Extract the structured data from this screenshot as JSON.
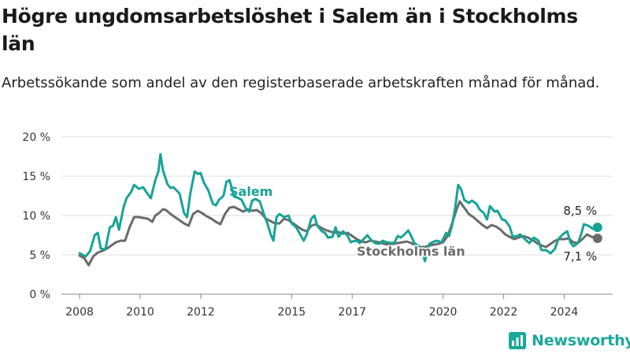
{
  "title": "Högre ungdomsarbetslöshet i Salem än i Stockholms län",
  "subtitle": "Arbetssökande som andel av den registerbaserade arbetskraften månad för månad.",
  "brand": "Newsworthy",
  "colors": {
    "salem": "#17a398",
    "stockholm": "#6b6b6b",
    "grid": "#dddddd",
    "brand": "#1aa89a"
  },
  "chart_data": {
    "type": "line",
    "ylim": [
      0,
      20
    ],
    "yticks": [
      0,
      5,
      10,
      15,
      20
    ],
    "ytick_labels": [
      "0 %",
      "5 %",
      "10 %",
      "15 %",
      "20 %"
    ],
    "xlim": [
      2007.4,
      2025.6
    ],
    "xticks": [
      2008,
      2010,
      2012,
      2015,
      2017,
      2020,
      2022,
      2024
    ],
    "xtick_labels": [
      "2008",
      "2010",
      "2012",
      "2015",
      "2017",
      "2020",
      "2022",
      "2024"
    ],
    "grid": true,
    "series": [
      {
        "name": "Salem",
        "end_label": "8,5 %",
        "points": [
          [
            2008.0,
            5.2
          ],
          [
            2008.2,
            4.8
          ],
          [
            2008.35,
            5.5
          ],
          [
            2008.5,
            7.5
          ],
          [
            2008.6,
            7.8
          ],
          [
            2008.7,
            5.8
          ],
          [
            2008.85,
            5.7
          ],
          [
            2009.0,
            8.5
          ],
          [
            2009.1,
            8.7
          ],
          [
            2009.2,
            9.8
          ],
          [
            2009.3,
            8.2
          ],
          [
            2009.45,
            11.0
          ],
          [
            2009.55,
            12.2
          ],
          [
            2009.7,
            13.0
          ],
          [
            2009.8,
            13.9
          ],
          [
            2009.95,
            13.4
          ],
          [
            2010.1,
            13.6
          ],
          [
            2010.2,
            13.0
          ],
          [
            2010.35,
            12.2
          ],
          [
            2010.5,
            14.5
          ],
          [
            2010.6,
            15.6
          ],
          [
            2010.67,
            17.8
          ],
          [
            2010.75,
            15.8
          ],
          [
            2010.9,
            14.0
          ],
          [
            2011.0,
            13.5
          ],
          [
            2011.1,
            13.6
          ],
          [
            2011.3,
            12.8
          ],
          [
            2011.45,
            10.3
          ],
          [
            2011.55,
            9.8
          ],
          [
            2011.65,
            12.7
          ],
          [
            2011.8,
            15.6
          ],
          [
            2011.9,
            15.3
          ],
          [
            2012.0,
            15.4
          ],
          [
            2012.1,
            14.2
          ],
          [
            2012.25,
            13.2
          ],
          [
            2012.4,
            11.5
          ],
          [
            2012.5,
            11.3
          ],
          [
            2012.6,
            12.0
          ],
          [
            2012.75,
            12.5
          ],
          [
            2012.85,
            14.3
          ],
          [
            2012.95,
            14.5
          ],
          [
            2013.1,
            12.4
          ],
          [
            2013.2,
            12.3
          ],
          [
            2013.35,
            12.0
          ],
          [
            2013.5,
            10.8
          ],
          [
            2013.6,
            10.5
          ],
          [
            2013.7,
            11.9
          ],
          [
            2013.8,
            12.1
          ],
          [
            2013.95,
            11.8
          ],
          [
            2014.1,
            10.0
          ],
          [
            2014.2,
            9.0
          ],
          [
            2014.3,
            7.7
          ],
          [
            2014.4,
            6.8
          ],
          [
            2014.5,
            9.8
          ],
          [
            2014.6,
            10.2
          ],
          [
            2014.75,
            9.8
          ],
          [
            2014.9,
            10.0
          ],
          [
            2015.0,
            9.0
          ],
          [
            2015.15,
            8.5
          ],
          [
            2015.3,
            7.5
          ],
          [
            2015.4,
            6.8
          ],
          [
            2015.5,
            7.6
          ],
          [
            2015.65,
            9.6
          ],
          [
            2015.75,
            10.0
          ],
          [
            2015.85,
            8.7
          ],
          [
            2016.0,
            8.0
          ],
          [
            2016.1,
            7.8
          ],
          [
            2016.2,
            7.2
          ],
          [
            2016.35,
            7.3
          ],
          [
            2016.45,
            8.5
          ],
          [
            2016.55,
            7.3
          ],
          [
            2016.7,
            8.0
          ],
          [
            2016.85,
            7.4
          ],
          [
            2016.95,
            6.6
          ],
          [
            2017.0,
            6.7
          ],
          [
            2017.15,
            6.8
          ],
          [
            2017.25,
            6.5
          ],
          [
            2017.35,
            6.9
          ],
          [
            2017.5,
            7.5
          ],
          [
            2017.6,
            7.0
          ],
          [
            2017.75,
            6.5
          ],
          [
            2017.9,
            6.4
          ],
          [
            2018.0,
            6.8
          ],
          [
            2018.15,
            6.6
          ],
          [
            2018.3,
            6.5
          ],
          [
            2018.4,
            6.6
          ],
          [
            2018.5,
            7.4
          ],
          [
            2018.6,
            7.2
          ],
          [
            2018.7,
            7.5
          ],
          [
            2018.85,
            8.1
          ],
          [
            2018.95,
            7.4
          ],
          [
            2019.05,
            6.5
          ],
          [
            2019.2,
            6.1
          ],
          [
            2019.3,
            5.7
          ],
          [
            2019.4,
            4.2
          ],
          [
            2019.55,
            6.4
          ],
          [
            2019.7,
            6.7
          ],
          [
            2019.8,
            6.8
          ],
          [
            2019.95,
            6.6
          ],
          [
            2020.1,
            7.8
          ],
          [
            2020.2,
            7.4
          ],
          [
            2020.3,
            8.8
          ],
          [
            2020.4,
            11.0
          ],
          [
            2020.5,
            13.9
          ],
          [
            2020.6,
            13.3
          ],
          [
            2020.7,
            12.0
          ],
          [
            2020.85,
            11.6
          ],
          [
            2020.95,
            11.9
          ],
          [
            2021.1,
            11.5
          ],
          [
            2021.2,
            10.8
          ],
          [
            2021.35,
            10.3
          ],
          [
            2021.45,
            9.5
          ],
          [
            2021.55,
            11.2
          ],
          [
            2021.7,
            10.5
          ],
          [
            2021.8,
            10.6
          ],
          [
            2021.95,
            9.5
          ],
          [
            2022.05,
            9.4
          ],
          [
            2022.2,
            8.6
          ],
          [
            2022.3,
            7.3
          ],
          [
            2022.45,
            7.4
          ],
          [
            2022.55,
            7.6
          ],
          [
            2022.7,
            7.0
          ],
          [
            2022.85,
            6.5
          ],
          [
            2023.0,
            7.2
          ],
          [
            2023.15,
            6.8
          ],
          [
            2023.25,
            5.6
          ],
          [
            2023.4,
            5.6
          ],
          [
            2023.55,
            5.2
          ],
          [
            2023.7,
            5.8
          ],
          [
            2023.8,
            7.0
          ],
          [
            2023.95,
            7.6
          ],
          [
            2024.1,
            8.0
          ],
          [
            2024.2,
            6.6
          ],
          [
            2024.3,
            6.1
          ],
          [
            2024.45,
            6.5
          ],
          [
            2024.55,
            7.5
          ],
          [
            2024.65,
            8.9
          ],
          [
            2024.8,
            8.7
          ],
          [
            2024.95,
            8.3
          ],
          [
            2025.1,
            8.5
          ]
        ]
      },
      {
        "name": "Stockholms län",
        "end_label": "7,1 %",
        "points": [
          [
            2008.0,
            4.9
          ],
          [
            2008.15,
            4.6
          ],
          [
            2008.3,
            3.7
          ],
          [
            2008.45,
            4.8
          ],
          [
            2008.6,
            5.3
          ],
          [
            2008.75,
            5.5
          ],
          [
            2008.9,
            5.8
          ],
          [
            2009.05,
            6.2
          ],
          [
            2009.2,
            6.6
          ],
          [
            2009.35,
            6.8
          ],
          [
            2009.5,
            6.8
          ],
          [
            2009.65,
            8.5
          ],
          [
            2009.8,
            9.8
          ],
          [
            2009.95,
            9.8
          ],
          [
            2010.1,
            9.7
          ],
          [
            2010.25,
            9.6
          ],
          [
            2010.4,
            9.2
          ],
          [
            2010.5,
            10.0
          ],
          [
            2010.62,
            10.3
          ],
          [
            2010.75,
            10.8
          ],
          [
            2010.85,
            10.7
          ],
          [
            2011.0,
            10.2
          ],
          [
            2011.15,
            9.8
          ],
          [
            2011.3,
            9.4
          ],
          [
            2011.45,
            9.0
          ],
          [
            2011.6,
            8.7
          ],
          [
            2011.75,
            10.2
          ],
          [
            2011.9,
            10.6
          ],
          [
            2012.05,
            10.3
          ],
          [
            2012.2,
            9.9
          ],
          [
            2012.35,
            9.6
          ],
          [
            2012.5,
            9.2
          ],
          [
            2012.65,
            8.9
          ],
          [
            2012.8,
            10.2
          ],
          [
            2012.95,
            11.0
          ],
          [
            2013.1,
            11.1
          ],
          [
            2013.25,
            10.8
          ],
          [
            2013.4,
            10.5
          ],
          [
            2013.55,
            10.8
          ],
          [
            2013.7,
            10.6
          ],
          [
            2013.85,
            10.7
          ],
          [
            2014.0,
            10.3
          ],
          [
            2014.15,
            9.6
          ],
          [
            2014.3,
            9.3
          ],
          [
            2014.45,
            9.0
          ],
          [
            2014.6,
            9.0
          ],
          [
            2014.75,
            9.6
          ],
          [
            2014.9,
            9.4
          ],
          [
            2015.05,
            9.0
          ],
          [
            2015.2,
            8.6
          ],
          [
            2015.35,
            8.2
          ],
          [
            2015.5,
            8.0
          ],
          [
            2015.65,
            8.7
          ],
          [
            2015.8,
            8.9
          ],
          [
            2015.95,
            8.5
          ],
          [
            2016.1,
            8.2
          ],
          [
            2016.25,
            8.0
          ],
          [
            2016.4,
            7.8
          ],
          [
            2016.55,
            7.9
          ],
          [
            2016.7,
            7.7
          ],
          [
            2016.85,
            7.8
          ],
          [
            2017.0,
            7.4
          ],
          [
            2017.15,
            7.0
          ],
          [
            2017.3,
            6.7
          ],
          [
            2017.45,
            6.6
          ],
          [
            2017.6,
            6.8
          ],
          [
            2017.75,
            6.7
          ],
          [
            2017.9,
            6.6
          ],
          [
            2018.05,
            6.4
          ],
          [
            2018.2,
            6.3
          ],
          [
            2018.35,
            6.4
          ],
          [
            2018.5,
            6.5
          ],
          [
            2018.65,
            6.6
          ],
          [
            2018.8,
            6.7
          ],
          [
            2018.95,
            6.5
          ],
          [
            2019.1,
            6.2
          ],
          [
            2019.25,
            6.0
          ],
          [
            2019.4,
            6.0
          ],
          [
            2019.55,
            6.2
          ],
          [
            2019.7,
            6.3
          ],
          [
            2019.85,
            6.4
          ],
          [
            2020.0,
            6.6
          ],
          [
            2020.15,
            7.4
          ],
          [
            2020.3,
            9.0
          ],
          [
            2020.45,
            10.8
          ],
          [
            2020.55,
            11.8
          ],
          [
            2020.7,
            11.0
          ],
          [
            2020.85,
            10.2
          ],
          [
            2021.0,
            9.8
          ],
          [
            2021.15,
            9.3
          ],
          [
            2021.3,
            8.8
          ],
          [
            2021.45,
            8.4
          ],
          [
            2021.6,
            8.8
          ],
          [
            2021.75,
            8.6
          ],
          [
            2021.9,
            8.2
          ],
          [
            2022.05,
            7.6
          ],
          [
            2022.2,
            7.3
          ],
          [
            2022.35,
            7.0
          ],
          [
            2022.5,
            7.2
          ],
          [
            2022.65,
            7.4
          ],
          [
            2022.8,
            7.2
          ],
          [
            2022.95,
            6.9
          ],
          [
            2023.1,
            6.5
          ],
          [
            2023.25,
            6.2
          ],
          [
            2023.4,
            6.0
          ],
          [
            2023.55,
            6.4
          ],
          [
            2023.7,
            6.8
          ],
          [
            2023.85,
            7.0
          ],
          [
            2024.0,
            7.0
          ],
          [
            2024.15,
            7.1
          ],
          [
            2024.3,
            6.6
          ],
          [
            2024.45,
            6.5
          ],
          [
            2024.6,
            7.0
          ],
          [
            2024.75,
            7.6
          ],
          [
            2024.9,
            7.3
          ],
          [
            2025.1,
            7.1
          ]
        ]
      }
    ]
  }
}
